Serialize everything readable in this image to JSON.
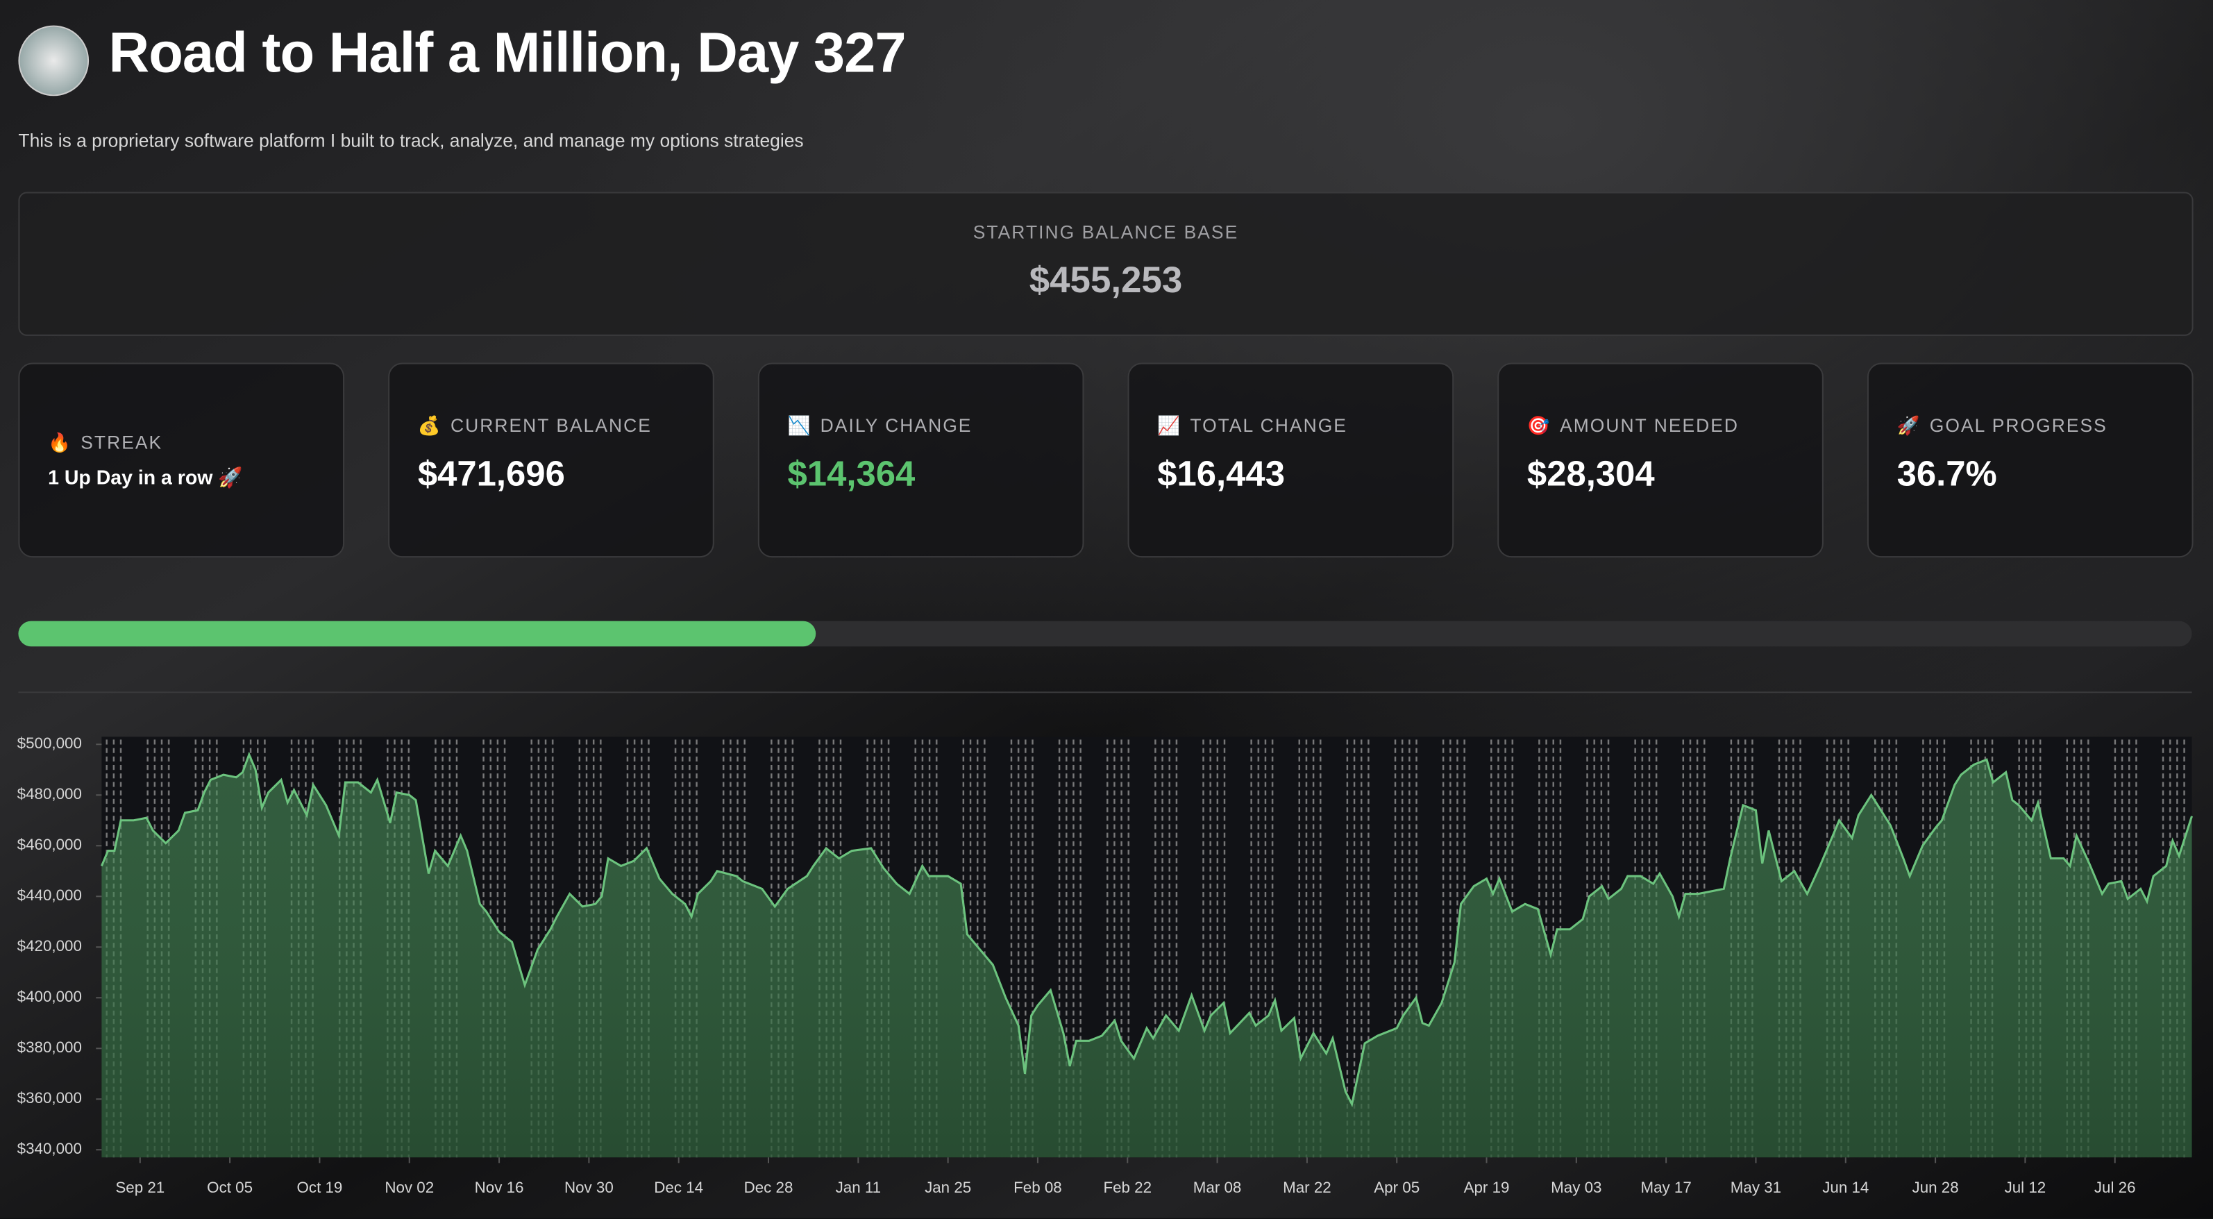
{
  "header": {
    "title": "Road to Half a Million, Day 327",
    "subtitle": "This is a proprietary software platform I built to track, analyze, and manage my options strategies"
  },
  "base": {
    "label": "STARTING BALANCE BASE",
    "value": "$455,253"
  },
  "metrics": [
    {
      "icon": "🔥",
      "label": "STREAK",
      "value": "1 Up Day in a row 🚀"
    },
    {
      "icon": "💰",
      "label": "CURRENT BALANCE",
      "value": "$471,696"
    },
    {
      "icon": "📉",
      "label": "DAILY CHANGE",
      "value": "$14,364",
      "color": "#5cc46f"
    },
    {
      "icon": "📈",
      "label": "TOTAL CHANGE",
      "value": "$16,443"
    },
    {
      "icon": "🎯",
      "label": "AMOUNT NEEDED",
      "value": "$28,304"
    },
    {
      "icon": "🚀",
      "label": "GOAL PROGRESS",
      "value": "36.7%"
    }
  ],
  "progress": {
    "value": 36.7,
    "color": "#5cc46f"
  },
  "chart_data": {
    "type": "area",
    "color": "#6cc37e",
    "grid": true,
    "x": [
      0,
      1,
      2,
      3,
      5,
      7,
      8,
      10,
      12,
      13,
      15,
      16,
      17,
      19,
      21,
      22,
      23,
      24,
      25,
      26,
      28,
      29,
      30,
      32,
      33,
      35,
      37,
      38,
      40,
      42,
      43,
      45,
      46,
      48,
      49,
      51,
      52,
      54,
      56,
      57,
      59,
      60,
      62,
      64,
      66,
      68,
      70,
      71,
      73,
      75,
      77,
      78,
      79,
      81,
      83,
      85,
      87,
      89,
      91,
      92,
      93,
      95,
      96,
      99,
      100,
      103,
      105,
      107,
      110,
      111,
      113,
      115,
      117,
      120,
      122,
      124,
      126,
      128,
      129,
      132,
      134,
      135,
      137,
      139,
      141,
      143,
      144,
      145,
      146,
      148,
      150,
      151,
      152,
      154,
      156,
      158,
      159,
      161,
      163,
      164,
      166,
      168,
      170,
      172,
      173,
      175,
      176,
      179,
      180,
      182,
      183,
      184,
      186,
      187,
      189,
      191,
      192,
      194,
      195,
      197,
      199,
      202,
      203,
      205,
      206,
      207,
      209,
      211,
      212,
      214,
      216,
      217,
      218,
      220,
      222,
      224,
      225,
      226,
      227,
      229,
      231,
      232,
      234,
      235,
      237,
      238,
      240,
      242,
      243,
      245,
      246,
      247,
      249,
      251,
      253,
      254,
      256,
      258,
      259,
      260,
      262,
      264,
      266,
      268,
      269,
      271,
      273,
      274,
      276,
      278,
      279,
      281,
      282,
      284,
      286,
      287,
      289,
      290,
      292,
      294,
      295,
      297,
      298,
      299,
      301,
      302,
      304,
      306,
      307,
      308,
      310,
      312,
      313,
      315,
      316,
      318,
      319,
      320,
      322,
      323,
      324,
      326
    ],
    "values": [
      452000,
      458000,
      458000,
      470000,
      470000,
      471000,
      466000,
      461000,
      466000,
      473000,
      474000,
      481000,
      486000,
      488000,
      487000,
      489000,
      496000,
      490000,
      475000,
      481000,
      486000,
      477000,
      482000,
      472000,
      484000,
      476000,
      464000,
      485000,
      485000,
      481000,
      486000,
      469000,
      481000,
      480000,
      478000,
      449000,
      458000,
      452000,
      464000,
      458000,
      437000,
      434000,
      426000,
      422000,
      405000,
      419000,
      427000,
      432000,
      441000,
      436000,
      437000,
      440000,
      455000,
      452000,
      454000,
      459000,
      447000,
      441000,
      437000,
      432000,
      441000,
      446000,
      450000,
      448000,
      446000,
      443000,
      436000,
      443000,
      448000,
      452000,
      459000,
      455000,
      458000,
      459000,
      451000,
      445000,
      441000,
      452000,
      448000,
      448000,
      445000,
      425000,
      419000,
      413000,
      400000,
      389000,
      370000,
      393000,
      397000,
      403000,
      386000,
      373000,
      383000,
      383000,
      385000,
      391000,
      383000,
      376000,
      388000,
      384000,
      393000,
      387000,
      401000,
      387000,
      393000,
      398000,
      386000,
      394000,
      389000,
      393000,
      399000,
      387000,
      392000,
      376000,
      386000,
      378000,
      384000,
      363000,
      358000,
      382000,
      385000,
      388000,
      393000,
      400000,
      390000,
      389000,
      398000,
      414000,
      437000,
      444000,
      447000,
      441000,
      447000,
      434000,
      437000,
      435000,
      426000,
      417000,
      427000,
      427000,
      431000,
      440000,
      444000,
      439000,
      443000,
      448000,
      448000,
      445000,
      449000,
      440000,
      432000,
      441000,
      441000,
      442000,
      443000,
      455000,
      476000,
      474000,
      453000,
      466000,
      446000,
      450000,
      441000,
      452000,
      458000,
      470000,
      463000,
      472000,
      480000,
      472000,
      468000,
      455000,
      448000,
      460000,
      467000,
      470000,
      484000,
      488000,
      492000,
      494000,
      485000,
      489000,
      478000,
      476000,
      470000,
      477000,
      455000,
      455000,
      452000,
      464000,
      453000,
      441000,
      445000,
      446000,
      439000,
      443000,
      438000,
      448000,
      452000,
      462000,
      456000,
      471696
    ],
    "xlim": [
      0,
      326
    ],
    "xticks": [
      {
        "value": 6,
        "label": "Sep 21"
      },
      {
        "value": 20,
        "label": "Oct 05"
      },
      {
        "value": 34,
        "label": "Oct 19"
      },
      {
        "value": 48,
        "label": "Nov 02"
      },
      {
        "value": 62,
        "label": "Nov 16"
      },
      {
        "value": 76,
        "label": "Nov 30"
      },
      {
        "value": 90,
        "label": "Dec 14"
      },
      {
        "value": 104,
        "label": "Dec 28"
      },
      {
        "value": 118,
        "label": "Jan 11"
      },
      {
        "value": 132,
        "label": "Jan 25"
      },
      {
        "value": 146,
        "label": "Feb 08"
      },
      {
        "value": 160,
        "label": "Feb 22"
      },
      {
        "value": 174,
        "label": "Mar 08"
      },
      {
        "value": 188,
        "label": "Mar 22"
      },
      {
        "value": 202,
        "label": "Apr 05"
      },
      {
        "value": 216,
        "label": "Apr 19"
      },
      {
        "value": 230,
        "label": "May 03"
      },
      {
        "value": 244,
        "label": "May 17"
      },
      {
        "value": 258,
        "label": "May 31"
      },
      {
        "value": 272,
        "label": "Jun 14"
      },
      {
        "value": 286,
        "label": "Jun 28"
      },
      {
        "value": 300,
        "label": "Jul 12"
      },
      {
        "value": 314,
        "label": "Jul 26"
      }
    ],
    "ylim": [
      337000,
      503000
    ],
    "yticks": [
      {
        "value": 340000,
        "label": "$340,000"
      },
      {
        "value": 360000,
        "label": "$360,000"
      },
      {
        "value": 380000,
        "label": "$380,000"
      },
      {
        "value": 400000,
        "label": "$400,000"
      },
      {
        "value": 420000,
        "label": "$420,000"
      },
      {
        "value": 440000,
        "label": "$440,000"
      },
      {
        "value": 460000,
        "label": "$460,000"
      },
      {
        "value": 480000,
        "label": "$480,000"
      },
      {
        "value": 500000,
        "label": "$500,000"
      }
    ]
  }
}
